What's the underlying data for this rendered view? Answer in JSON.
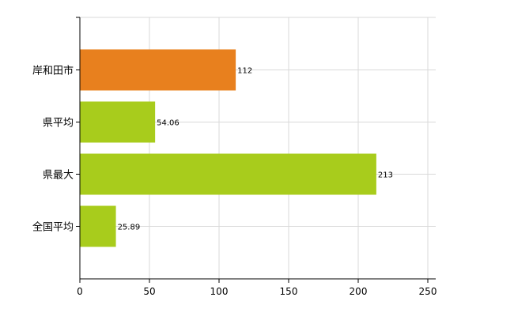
{
  "chart_data": {
    "type": "bar",
    "orientation": "horizontal",
    "categories": [
      "岸和田市",
      "県平均",
      "県最大",
      "全国平均"
    ],
    "values": [
      112,
      54.06,
      213,
      25.89
    ],
    "data_labels": [
      "112",
      "54.06",
      "213",
      "25.89"
    ],
    "colors": [
      "#e8801e",
      "#a8cc1c",
      "#a8cc1c",
      "#a8cc1c"
    ],
    "xlim": [
      0,
      250
    ],
    "xticks": [
      0,
      50,
      100,
      150,
      200,
      250
    ],
    "grid": true,
    "title": "",
    "xlabel": "",
    "ylabel": ""
  }
}
